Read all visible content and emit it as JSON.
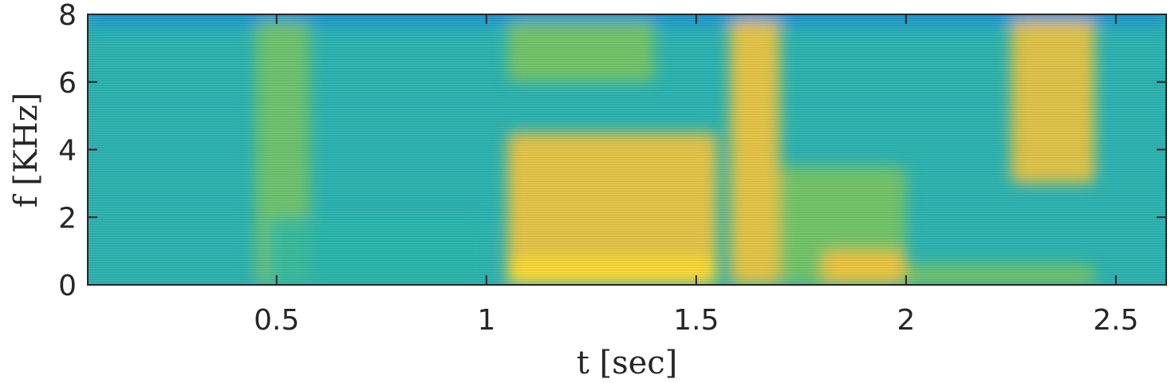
{
  "chart_data": {
    "type": "heatmap",
    "subtype": "spectrogram",
    "title": "",
    "xlabel": "t [sec]",
    "ylabel": "f [KHz]",
    "xlim": [
      0.05,
      2.62
    ],
    "ylim": [
      0,
      8
    ],
    "xticks": [
      0.5,
      1,
      1.5,
      2,
      2.5
    ],
    "xtick_labels": [
      "0.5",
      "1",
      "1.5",
      "2",
      "2.5"
    ],
    "yticks": [
      0,
      2,
      4,
      6,
      8
    ],
    "ytick_labels": [
      "0",
      "2",
      "4",
      "6",
      "8"
    ],
    "colormap": "parula",
    "colors": {
      "low": "#1f8fd8",
      "mid": "#26b5a6",
      "midhigh": "#7cc45a",
      "high": "#f2c23a",
      "peak": "#fbd631",
      "axis": "#262626"
    },
    "energy_regions": [
      {
        "t": [
          0.45,
          0.58
        ],
        "f": [
          0.0,
          7.8
        ],
        "level": 0.55
      },
      {
        "t": [
          0.48,
          1.0
        ],
        "f": [
          0.0,
          2.0
        ],
        "level": 0.45
      },
      {
        "t": [
          1.05,
          1.55
        ],
        "f": [
          0.0,
          4.5
        ],
        "level": 0.8
      },
      {
        "t": [
          1.05,
          1.55
        ],
        "f": [
          0.0,
          0.8
        ],
        "level": 1.0
      },
      {
        "t": [
          1.05,
          1.4
        ],
        "f": [
          6.0,
          7.8
        ],
        "level": 0.65
      },
      {
        "t": [
          1.58,
          1.7
        ],
        "f": [
          0.0,
          7.8
        ],
        "level": 0.8
      },
      {
        "t": [
          1.7,
          2.0
        ],
        "f": [
          0.0,
          3.5
        ],
        "level": 0.65
      },
      {
        "t": [
          1.8,
          2.0
        ],
        "f": [
          0.0,
          1.0
        ],
        "level": 0.85
      },
      {
        "t": [
          2.25,
          2.45
        ],
        "f": [
          3.0,
          7.8
        ],
        "level": 0.75
      },
      {
        "t": [
          2.0,
          2.45
        ],
        "f": [
          0.0,
          0.6
        ],
        "level": 0.65
      }
    ]
  }
}
